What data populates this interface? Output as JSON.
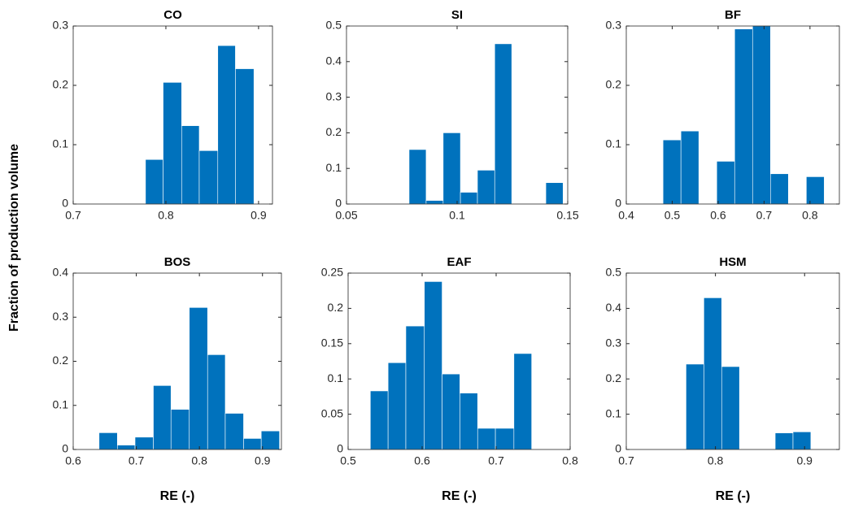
{
  "chart_data": [
    {
      "type": "histogram",
      "title": "CO",
      "ylabel": "Fraction of production volume",
      "color": "#0072bd",
      "bins": [
        0.778,
        0.797,
        0.817,
        0.836,
        0.856,
        0.875,
        0.895
      ],
      "values": [
        0.075,
        0.205,
        0.132,
        0.09,
        0.267,
        0.228
      ],
      "xlim": [
        0.7,
        0.915
      ],
      "xticks": [
        0.7,
        0.8,
        0.9
      ],
      "ylim": [
        0,
        0.3
      ],
      "yticks": [
        0,
        0.1,
        0.2,
        0.3
      ]
    },
    {
      "type": "histogram",
      "title": "SI",
      "color": "#0072bd",
      "bins": [
        0.0783,
        0.086,
        0.0937,
        0.1015,
        0.1092,
        0.117,
        0.1247,
        0.1324,
        0.1401,
        0.1479
      ],
      "values": [
        0.153,
        0.01,
        0.2,
        0.033,
        0.095,
        0.45,
        0,
        0,
        0.06
      ],
      "xlim": [
        0.05,
        0.15
      ],
      "xticks": [
        0.05,
        0.1,
        0.15
      ],
      "ylim": [
        0,
        0.5
      ],
      "yticks": [
        0,
        0.1,
        0.2,
        0.3,
        0.4,
        0.5
      ]
    },
    {
      "type": "histogram",
      "title": "BF",
      "color": "#0072bd",
      "bins": [
        0.48,
        0.519,
        0.558,
        0.597,
        0.636,
        0.675,
        0.714,
        0.753,
        0.792,
        0.831
      ],
      "values": [
        0.108,
        0.123,
        0,
        0.072,
        0.295,
        0.3,
        0.051,
        0,
        0.046
      ],
      "xlim": [
        0.4,
        0.864
      ],
      "xticks": [
        0.4,
        0.5,
        0.6,
        0.7,
        0.8
      ],
      "ylim": [
        0,
        0.3
      ],
      "yticks": [
        0,
        0.1,
        0.2,
        0.3
      ]
    },
    {
      "type": "histogram",
      "title": "BOS",
      "xlabel": "RE (-)",
      "color": "#0072bd",
      "bins": [
        0.641,
        0.67,
        0.698,
        0.727,
        0.755,
        0.784,
        0.813,
        0.841,
        0.87,
        0.898,
        0.927
      ],
      "values": [
        0.038,
        0.01,
        0.028,
        0.145,
        0.091,
        0.322,
        0.215,
        0.082,
        0.025,
        0.042
      ],
      "xlim": [
        0.6,
        0.93
      ],
      "xticks": [
        0.6,
        0.7,
        0.8,
        0.9
      ],
      "ylim": [
        0,
        0.4
      ],
      "yticks": [
        0,
        0.1,
        0.2,
        0.3,
        0.4
      ]
    },
    {
      "type": "histogram",
      "title": "EAF",
      "xlabel": "RE (-)",
      "color": "#0072bd",
      "bins": [
        0.53,
        0.554,
        0.578,
        0.603,
        0.627,
        0.651,
        0.675,
        0.699,
        0.724,
        0.748
      ],
      "values": [
        0.083,
        0.123,
        0.175,
        0.238,
        0.107,
        0.08,
        0.03,
        0.03,
        0.136
      ],
      "xlim": [
        0.5,
        0.8
      ],
      "xticks": [
        0.5,
        0.6,
        0.7,
        0.8
      ],
      "ylim": [
        0,
        0.25
      ],
      "yticks": [
        0,
        0.05,
        0.1,
        0.15,
        0.2,
        0.25
      ]
    },
    {
      "type": "histogram",
      "title": "HSM",
      "xlabel": "RE (-)",
      "color": "#0072bd",
      "bins": [
        0.767,
        0.787,
        0.807,
        0.827,
        0.847,
        0.867,
        0.887,
        0.907
      ],
      "values": [
        0.242,
        0.43,
        0.235,
        0,
        0,
        0.047,
        0.05
      ],
      "xlim": [
        0.7,
        0.939
      ],
      "xticks": [
        0.7,
        0.8,
        0.9
      ],
      "ylim": [
        0,
        0.5
      ],
      "yticks": [
        0,
        0.1,
        0.2,
        0.3,
        0.4,
        0.5
      ]
    }
  ]
}
